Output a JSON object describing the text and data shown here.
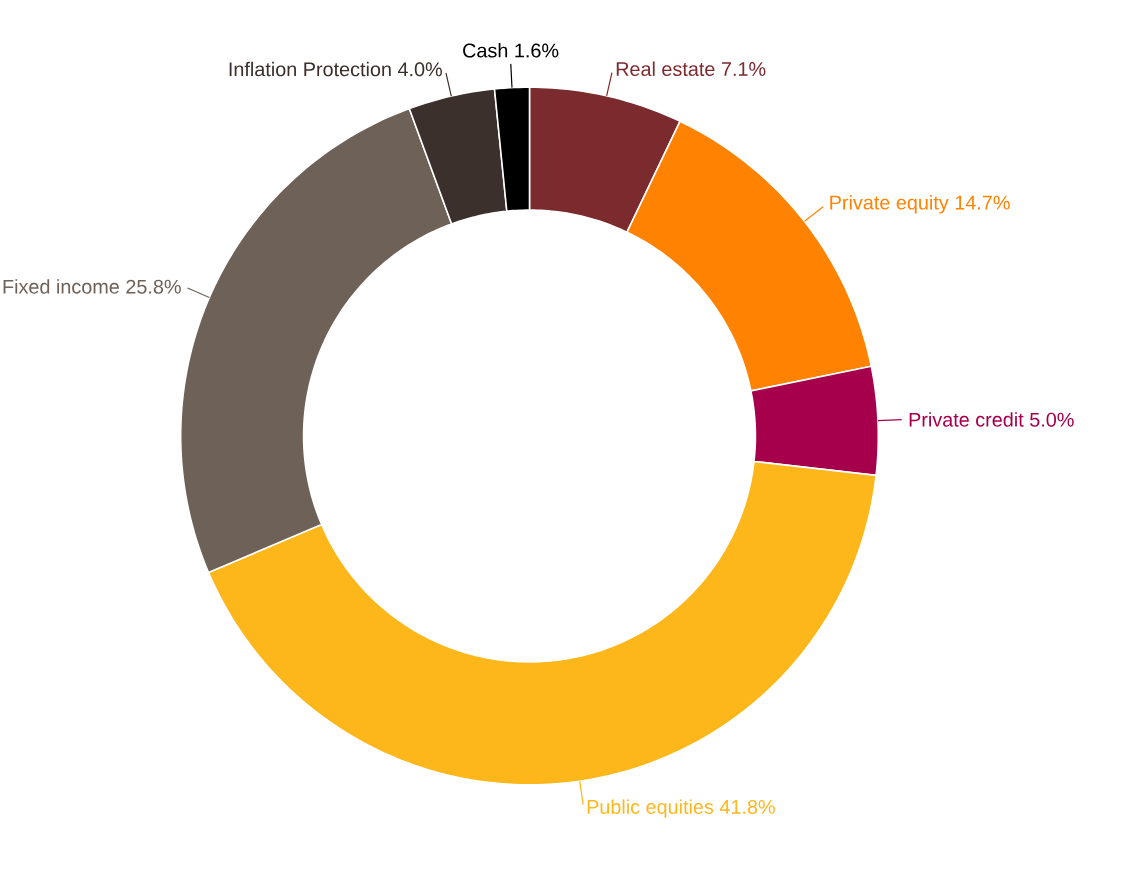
{
  "chart_data": {
    "type": "donut",
    "categories": [
      "Real estate",
      "Private equity",
      "Private credit",
      "Public equities",
      "Fixed income",
      "Inflation Protection",
      "Cash"
    ],
    "values": [
      7.1,
      14.7,
      5.0,
      41.8,
      25.8,
      4.0,
      1.6
    ],
    "value_labels": [
      "7.1%",
      "14.7%",
      "5.0%",
      "41.8%",
      "25.8%",
      "4.0%",
      "1.6%"
    ],
    "colors": [
      "#7b2a2d",
      "#ff8200",
      "#a6004d",
      "#fdb71a",
      "#6e6157",
      "#3b302b",
      "#000000"
    ]
  }
}
